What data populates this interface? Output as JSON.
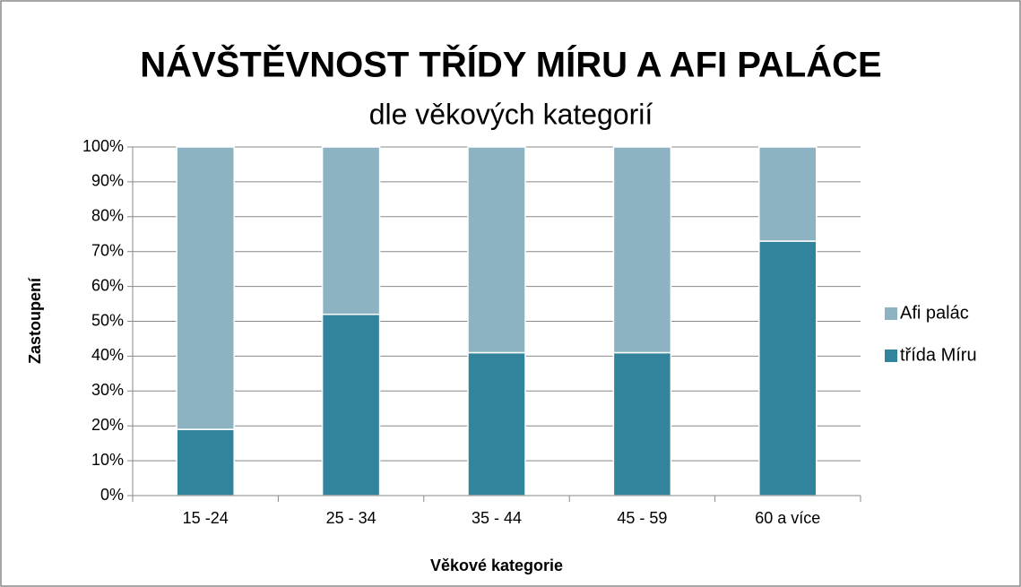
{
  "chart_data": {
    "type": "stacked_bar",
    "title": "NÁVŠTĚVNOST TŘÍDY MÍRU A AFI PALÁCE",
    "subtitle": "dle věkových kategorií",
    "x_label": "Věkové kategorie",
    "y_label": "Zastoupení",
    "categories": [
      "15 -24",
      "25 - 34",
      "35 - 44",
      "45 - 59",
      "60 a více"
    ],
    "series": [
      {
        "name": "třída Míru",
        "color": "#31849b",
        "values": [
          19,
          52,
          41,
          41,
          73
        ]
      },
      {
        "name": "Afi palác",
        "color": "#8db3c3",
        "values": [
          81,
          48,
          59,
          59,
          27
        ]
      }
    ],
    "ylim": [
      0,
      100
    ],
    "yticks": [
      {
        "value": 0,
        "label": "0%"
      },
      {
        "value": 10,
        "label": "10%"
      },
      {
        "value": 20,
        "label": "20%"
      },
      {
        "value": 30,
        "label": "30%"
      },
      {
        "value": 40,
        "label": "40%"
      },
      {
        "value": 50,
        "label": "50%"
      },
      {
        "value": 60,
        "label": "60%"
      },
      {
        "value": 70,
        "label": "70%"
      },
      {
        "value": 80,
        "label": "80%"
      },
      {
        "value": 90,
        "label": "90%"
      },
      {
        "value": 100,
        "label": "100%"
      }
    ],
    "grid": true,
    "legend": "right"
  }
}
